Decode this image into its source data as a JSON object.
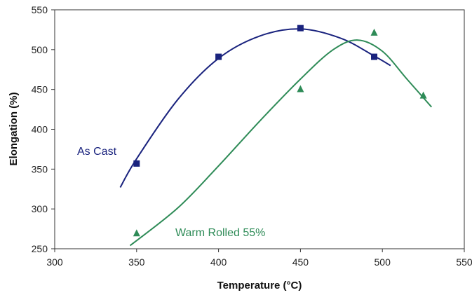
{
  "chart_data": {
    "type": "scatter",
    "title": "",
    "xlabel": "Temperature (°C)",
    "ylabel": "Elongation (%)",
    "xlim": [
      300,
      550
    ],
    "ylim": [
      250,
      550
    ],
    "xticks": [
      300,
      350,
      400,
      450,
      500,
      550
    ],
    "yticks": [
      250,
      300,
      350,
      400,
      450,
      500,
      550
    ],
    "xtick_labels": [
      "300",
      "350",
      "400",
      "450",
      "500",
      "550"
    ],
    "ytick_labels": [
      "250",
      "300",
      "350",
      "400",
      "450",
      "500",
      "550"
    ],
    "grid": false,
    "series": [
      {
        "name": "As Cast",
        "color": "#1a237e",
        "marker": "square",
        "points": [
          {
            "x": 350,
            "y": 357
          },
          {
            "x": 400,
            "y": 491
          },
          {
            "x": 450,
            "y": 527
          },
          {
            "x": 495,
            "y": 491
          }
        ],
        "trend": {
          "type": "smooth",
          "points": [
            {
              "x": 340,
              "y": 327
            },
            {
              "x": 350,
              "y": 363
            },
            {
              "x": 375,
              "y": 437
            },
            {
              "x": 400,
              "y": 489
            },
            {
              "x": 425,
              "y": 517
            },
            {
              "x": 450,
              "y": 526
            },
            {
              "x": 475,
              "y": 514
            },
            {
              "x": 495,
              "y": 492
            },
            {
              "x": 505,
              "y": 480
            }
          ]
        }
      },
      {
        "name": "Warm Rolled 55%",
        "color": "#2e8b57",
        "marker": "triangle",
        "points": [
          {
            "x": 350,
            "y": 270
          },
          {
            "x": 450,
            "y": 451
          },
          {
            "x": 495,
            "y": 522
          },
          {
            "x": 525,
            "y": 443
          }
        ],
        "trend": {
          "type": "smooth",
          "points": [
            {
              "x": 346,
              "y": 254
            },
            {
              "x": 375,
              "y": 301
            },
            {
              "x": 400,
              "y": 354
            },
            {
              "x": 425,
              "y": 410
            },
            {
              "x": 450,
              "y": 463
            },
            {
              "x": 470,
              "y": 500
            },
            {
              "x": 485,
              "y": 512
            },
            {
              "x": 500,
              "y": 498
            },
            {
              "x": 515,
              "y": 463
            },
            {
              "x": 530,
              "y": 428
            }
          ]
        }
      }
    ]
  }
}
